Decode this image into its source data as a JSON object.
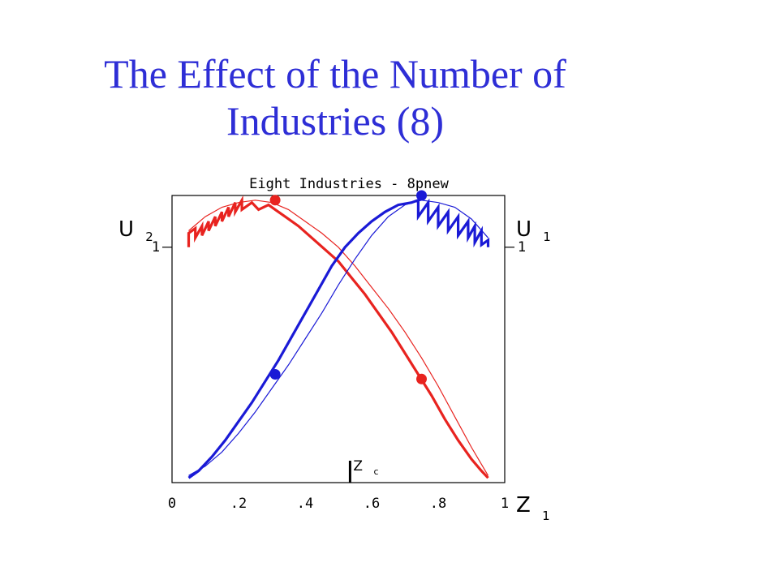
{
  "slide": {
    "title_line1": "The Effect of the Number of",
    "title_line2": "Industries (8)"
  },
  "chart_data": {
    "type": "line",
    "title": "Eight Industries - 8pnew",
    "x_tick_labels": [
      "0",
      ".2",
      ".4",
      ".6",
      ".8",
      "1"
    ],
    "x_ticks": [
      0,
      0.2,
      0.4,
      0.6,
      0.8,
      1
    ],
    "xlim": [
      0,
      1
    ],
    "ylim": [
      0,
      1.22
    ],
    "y_tick_left": "1",
    "y_tick_right": "1",
    "y_tick_value": 1,
    "xlabel": {
      "main": "Z",
      "sub": "1"
    },
    "left_axis_label": {
      "main": "U",
      "sub": "2"
    },
    "right_axis_label": {
      "main": "U",
      "sub": "1"
    },
    "zc_label": {
      "main": "Z",
      "sub": "c"
    },
    "zc_value": 0.535,
    "colors": {
      "red": "#e8231f",
      "blue": "#1a1ad6",
      "axis": "#000000",
      "title": "#2e2ed6"
    },
    "series": [
      {
        "color": "red",
        "style": "smooth-thin",
        "x": [
          0.05,
          0.1,
          0.15,
          0.2,
          0.25,
          0.3,
          0.35,
          0.4,
          0.45,
          0.5,
          0.55,
          0.6,
          0.65,
          0.7,
          0.75,
          0.8,
          0.85,
          0.9,
          0.95
        ],
        "y": [
          1.07,
          1.13,
          1.17,
          1.19,
          1.2,
          1.19,
          1.16,
          1.11,
          1.06,
          1.0,
          0.92,
          0.83,
          0.74,
          0.64,
          0.53,
          0.41,
          0.28,
          0.15,
          0.03
        ]
      },
      {
        "color": "red",
        "style": "jagged-thick",
        "x": [
          0.05,
          0.05,
          0.07,
          0.07,
          0.09,
          0.09,
          0.11,
          0.11,
          0.13,
          0.13,
          0.15,
          0.15,
          0.17,
          0.17,
          0.19,
          0.19,
          0.21,
          0.21,
          0.24,
          0.26,
          0.29,
          0.31,
          0.34,
          0.38,
          0.42,
          0.46,
          0.5,
          0.54,
          0.58,
          0.62,
          0.66,
          0.7,
          0.74,
          0.78,
          0.82,
          0.86,
          0.9,
          0.93,
          0.95
        ],
        "y": [
          1.0,
          1.06,
          1.08,
          1.04,
          1.09,
          1.05,
          1.11,
          1.07,
          1.13,
          1.09,
          1.15,
          1.11,
          1.17,
          1.13,
          1.19,
          1.15,
          1.2,
          1.16,
          1.19,
          1.16,
          1.18,
          1.16,
          1.13,
          1.09,
          1.04,
          0.99,
          0.94,
          0.87,
          0.8,
          0.72,
          0.64,
          0.55,
          0.46,
          0.37,
          0.27,
          0.18,
          0.1,
          0.05,
          0.02
        ]
      },
      {
        "color": "blue",
        "style": "smooth-thin",
        "x": [
          0.05,
          0.1,
          0.15,
          0.2,
          0.25,
          0.3,
          0.35,
          0.4,
          0.45,
          0.5,
          0.55,
          0.6,
          0.65,
          0.7,
          0.75,
          0.8,
          0.85,
          0.9,
          0.95
        ],
        "y": [
          0.03,
          0.07,
          0.13,
          0.21,
          0.3,
          0.4,
          0.5,
          0.61,
          0.72,
          0.84,
          0.95,
          1.05,
          1.13,
          1.18,
          1.2,
          1.19,
          1.17,
          1.12,
          1.04
        ]
      },
      {
        "color": "blue",
        "style": "jagged-thick",
        "x": [
          0.05,
          0.08,
          0.12,
          0.16,
          0.2,
          0.24,
          0.28,
          0.32,
          0.36,
          0.4,
          0.44,
          0.48,
          0.52,
          0.56,
          0.6,
          0.64,
          0.68,
          0.72,
          0.74,
          0.74,
          0.77,
          0.77,
          0.8,
          0.8,
          0.83,
          0.83,
          0.86,
          0.86,
          0.89,
          0.89,
          0.91,
          0.91,
          0.93,
          0.93,
          0.95,
          0.95
        ],
        "y": [
          0.02,
          0.05,
          0.11,
          0.18,
          0.26,
          0.34,
          0.43,
          0.52,
          0.62,
          0.72,
          0.82,
          0.92,
          1.0,
          1.06,
          1.11,
          1.15,
          1.18,
          1.19,
          1.2,
          1.13,
          1.19,
          1.11,
          1.17,
          1.09,
          1.15,
          1.07,
          1.13,
          1.05,
          1.11,
          1.04,
          1.09,
          1.02,
          1.07,
          1.01,
          1.03,
          1.0
        ]
      }
    ],
    "markers": [
      {
        "color": "red",
        "x": 0.31,
        "y": 1.2
      },
      {
        "color": "blue",
        "x": 0.75,
        "y": 1.22
      },
      {
        "color": "blue",
        "x": 0.31,
        "y": 0.46
      },
      {
        "color": "red",
        "x": 0.75,
        "y": 0.44
      }
    ]
  }
}
